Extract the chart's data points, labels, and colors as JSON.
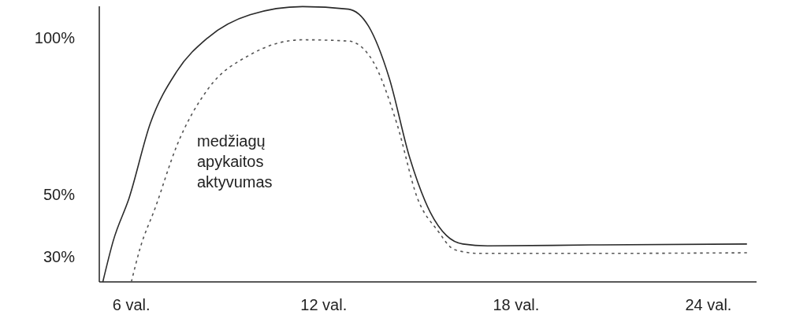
{
  "chart_data": {
    "type": "line",
    "series": [
      {
        "color": "#2a2a2a",
        "line_style": "solid",
        "x": [
          5.11,
          5.44,
          5.93,
          6.59,
          7.41,
          8.39,
          9.7,
          11.34,
          12.77,
          13.4,
          14.04,
          14.68,
          15.32,
          15.83,
          16.34,
          17.11,
          20.34,
          25.2
        ],
        "values": [
          22,
          35.3,
          48.8,
          72.6,
          89.1,
          100,
          107.3,
          109.9,
          109.1,
          103.6,
          87.2,
          61.7,
          44.3,
          36.8,
          34.1,
          33.5,
          33.8,
          34.1
        ]
      },
      {
        "color": "#555555",
        "line_style": "dotted",
        "x": [
          6,
          6.26,
          6.75,
          7.41,
          8.39,
          9.7,
          11.34,
          12.77,
          13.52,
          14.28,
          14.92,
          15.56,
          16.08,
          16.85,
          20.34,
          25.2
        ],
        "values": [
          22,
          32.3,
          45.8,
          65.3,
          83.6,
          94.5,
          99.3,
          98.9,
          92.7,
          72.6,
          48.8,
          38.3,
          32.3,
          31.1,
          31.1,
          31.3
        ]
      }
    ],
    "xlim": [
      5,
      25.5
    ],
    "xticks": [
      {
        "value": 6,
        "label": "6 val."
      },
      {
        "value": 12,
        "label": "12 val."
      },
      {
        "value": 18,
        "label": "18 val."
      },
      {
        "value": 24,
        "label": "24 val."
      }
    ],
    "ylim": [
      22,
      110
    ],
    "yticks": [
      {
        "value": 30,
        "label": "30%"
      },
      {
        "value": 50,
        "label": "50%"
      },
      {
        "value": 100,
        "label": "100%"
      }
    ],
    "grid": false,
    "annotations": [
      "medžiagų\napykaitos\naktyvumas"
    ]
  }
}
